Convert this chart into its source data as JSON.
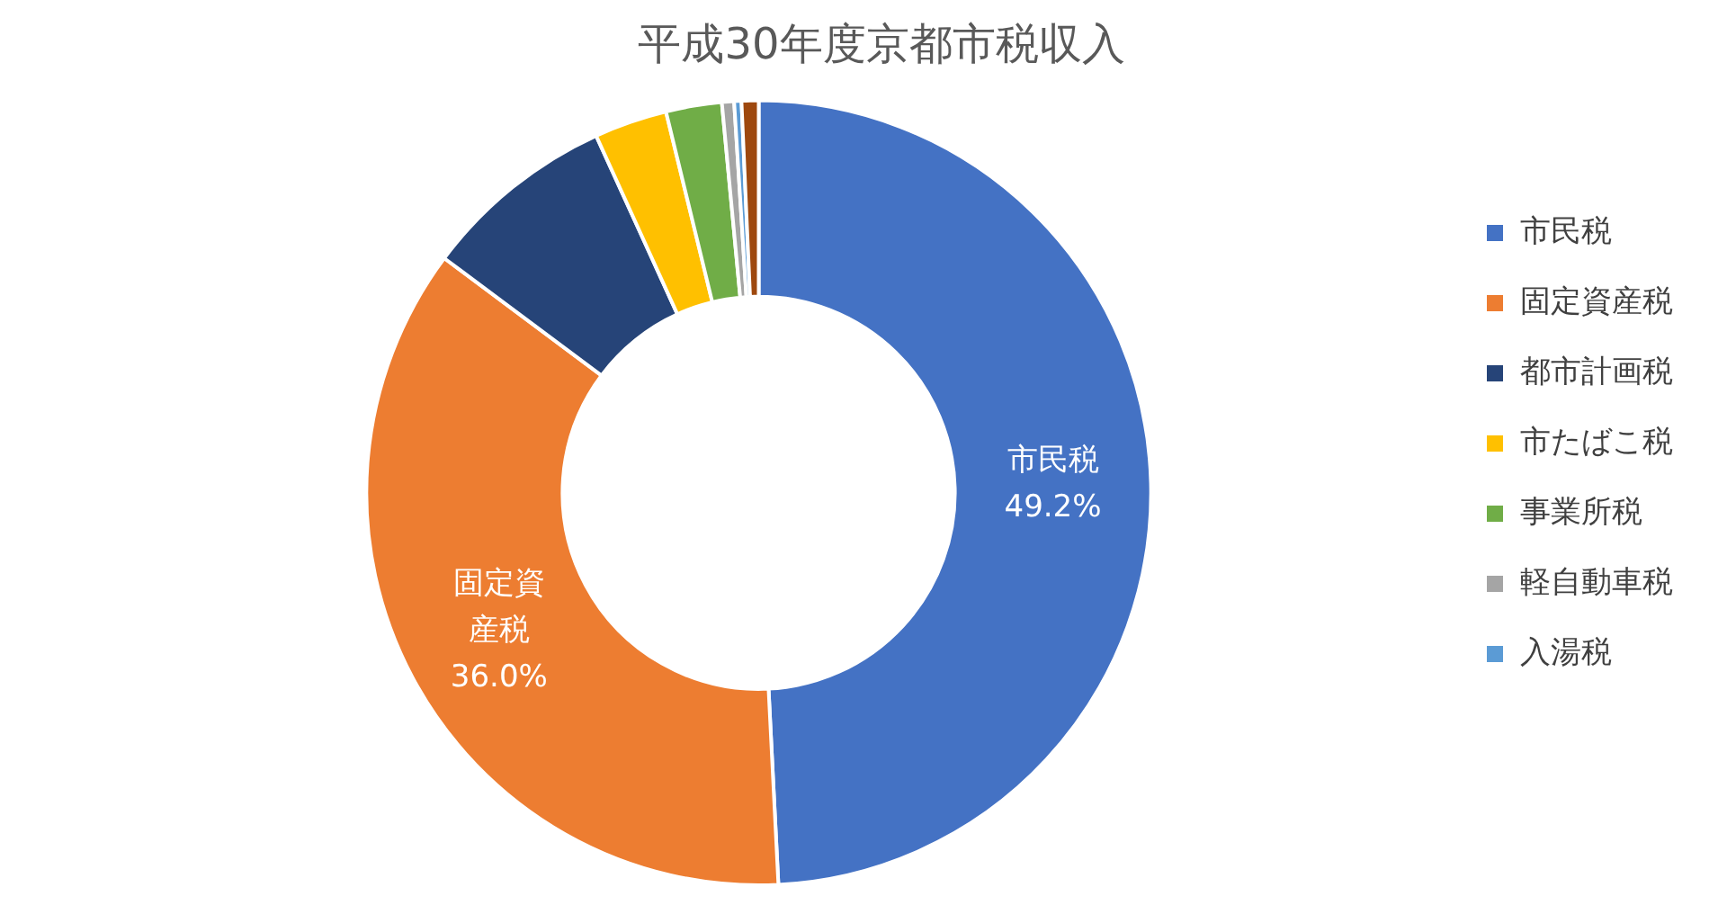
{
  "chart_data": {
    "type": "donut",
    "title": "平成30年度京都市税収入",
    "categories": [
      "市民税",
      "固定資産税",
      "都市計画税",
      "市たばこ税",
      "事業所税",
      "軽自動車税",
      "入湯税",
      null
    ],
    "values": [
      49.2,
      36.0,
      8.0,
      3.0,
      2.3,
      0.5,
      0.3,
      0.7
    ],
    "colors": [
      "#4472c4",
      "#ed7d31",
      "#264478",
      "#ffc000",
      "#70ad47",
      "#a5a5a5",
      "#5b9bd5",
      "#9e480e"
    ],
    "value_labels": [
      "49.2%",
      "36.0%",
      null,
      null,
      null,
      null,
      null,
      null
    ],
    "legend": "right"
  }
}
